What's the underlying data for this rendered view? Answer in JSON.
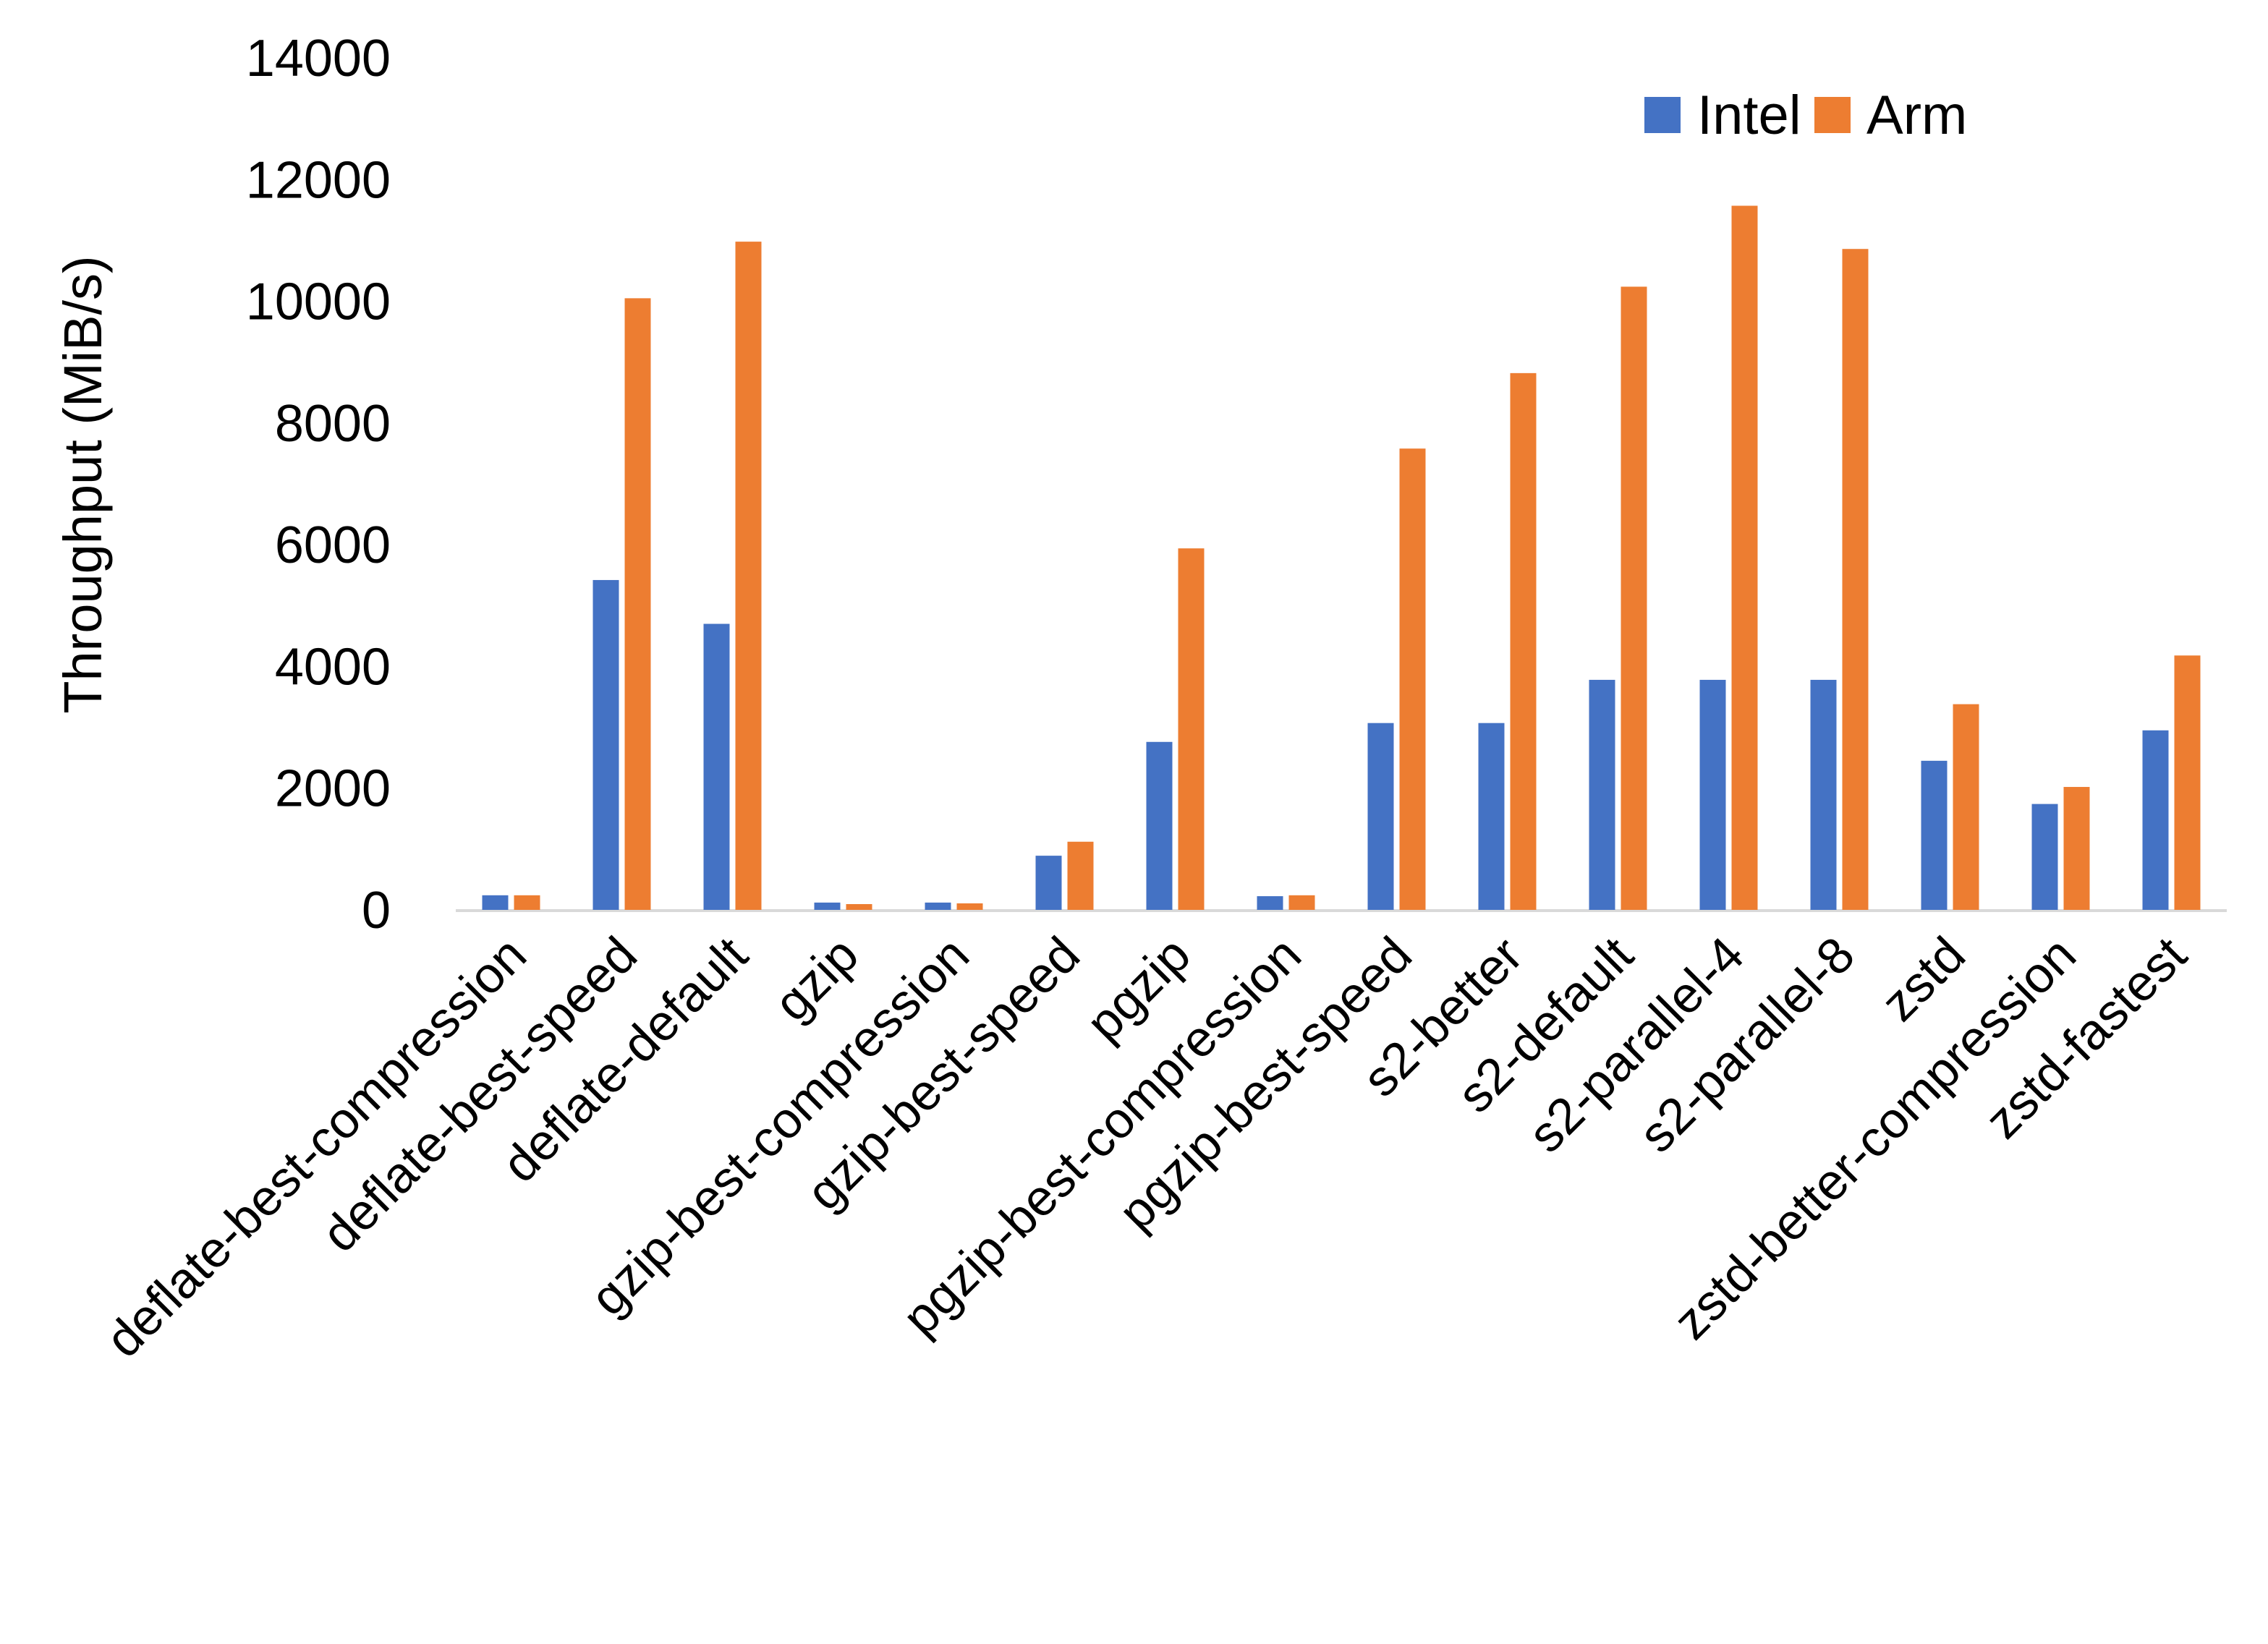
{
  "chart_data": {
    "type": "bar",
    "title": "",
    "xlabel": "",
    "ylabel": "Throughput (MiB/s)",
    "ylim": [
      0,
      14000
    ],
    "yticks": [
      0,
      2000,
      4000,
      6000,
      8000,
      10000,
      12000,
      14000
    ],
    "grid": false,
    "legend_position": "top-right",
    "categories": [
      "deflate-best-compression",
      "deflate-best-speed",
      "deflate-default",
      "gzip",
      "gzip-best-compression",
      "gzip-best-speed",
      "pgzip",
      "pgzip-best-compression",
      "pgzip-best-speed",
      "s2-better",
      "s2-default",
      "s2-parallel-4",
      "s2-parallel-8",
      "zstd",
      "zstd-better-compression",
      "zstd-fastest"
    ],
    "series": [
      {
        "name": "Intel",
        "color": "#4472C4",
        "values": [
          240,
          5420,
          4700,
          120,
          120,
          890,
          2760,
          225,
          3070,
          3070,
          3780,
          3780,
          3780,
          2450,
          1740,
          2950
        ]
      },
      {
        "name": "Arm",
        "color": "#ED7D31",
        "values": [
          240,
          10050,
          10980,
          95,
          107,
          1120,
          5940,
          240,
          7580,
          8820,
          10240,
          11570,
          10860,
          3380,
          2020,
          4180
        ]
      }
    ]
  }
}
